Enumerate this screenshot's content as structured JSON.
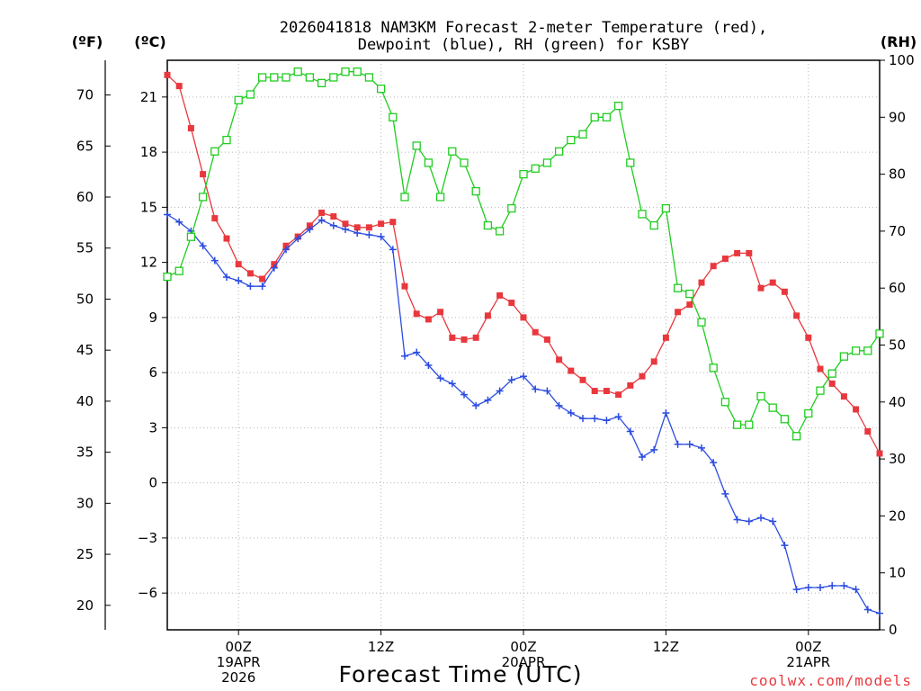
{
  "chart_data": {
    "type": "line",
    "title": [
      "2026041818 NAM3KM Forecast 2-meter Temperature (red),",
      "Dewpoint (blue), RH (green) for KSBY"
    ],
    "units": {
      "left_f": "(ºF)",
      "left_c": "(ºC)",
      "right": "(RH)"
    },
    "xlabel": "Forecast Time (UTC)",
    "credit": "coolwx.com/models",
    "x_axis": {
      "range_hours": [
        18,
        78
      ],
      "ticks": [
        {
          "hour": 24,
          "lines": [
            "00Z",
            "19APR",
            "2026"
          ]
        },
        {
          "hour": 36,
          "lines": [
            "12Z"
          ]
        },
        {
          "hour": 48,
          "lines": [
            "00Z",
            "20APR"
          ]
        },
        {
          "hour": 60,
          "lines": [
            "12Z"
          ]
        },
        {
          "hour": 72,
          "lines": [
            "00Z",
            "21APR"
          ]
        }
      ]
    },
    "y_celsius": {
      "range": [
        -8,
        23
      ],
      "ticks": [
        "21",
        "18",
        "15",
        "12",
        "9",
        "6",
        "3",
        "0",
        "−3",
        "−6"
      ]
    },
    "y_fahrenheit": {
      "ticks": [
        "70",
        "65",
        "60",
        "55",
        "50",
        "45",
        "40",
        "35",
        "30",
        "25",
        "20"
      ]
    },
    "y_rh": {
      "range": [
        0,
        100
      ],
      "ticks": [
        "100",
        "90",
        "80",
        "70",
        "60",
        "50",
        "40",
        "30",
        "20",
        "10",
        "0"
      ]
    },
    "series": [
      {
        "name": "Temperature",
        "unit": "C",
        "color": "#e8383d",
        "marker": "filled-square",
        "values": [
          22.2,
          21.6,
          19.3,
          16.8,
          14.4,
          13.3,
          11.9,
          11.4,
          11.1,
          11.9,
          12.9,
          13.4,
          14.0,
          14.7,
          14.5,
          14.1,
          13.9,
          13.9,
          14.1,
          14.2,
          10.7,
          9.2,
          8.9,
          9.3,
          7.9,
          7.8,
          7.9,
          9.1,
          10.2,
          9.8,
          9.0,
          8.2,
          7.8,
          6.7,
          6.1,
          5.6,
          5.0,
          5.0,
          4.8,
          5.3,
          5.8,
          6.6,
          7.9,
          9.3,
          9.7,
          10.9,
          11.8,
          12.2,
          12.5,
          12.5,
          10.6,
          10.9,
          10.4,
          9.1,
          7.9,
          6.2,
          5.4,
          4.7,
          4.0,
          2.8,
          1.6
        ]
      },
      {
        "name": "Dewpoint",
        "unit": "C",
        "color": "#2b4ce0",
        "marker": "plus",
        "values": [
          14.6,
          14.2,
          13.7,
          12.9,
          12.1,
          11.2,
          11.0,
          10.7,
          10.7,
          11.7,
          12.7,
          13.3,
          13.8,
          14.3,
          14.0,
          13.8,
          13.6,
          13.5,
          13.4,
          12.7,
          6.9,
          7.1,
          6.4,
          5.7,
          5.4,
          4.8,
          4.2,
          4.5,
          5.0,
          5.6,
          5.8,
          5.1,
          5.0,
          4.2,
          3.8,
          3.5,
          3.5,
          3.4,
          3.6,
          2.8,
          1.4,
          1.8,
          3.8,
          2.1,
          2.1,
          1.9,
          1.1,
          -0.6,
          -2.0,
          -2.1,
          -1.9,
          -2.1,
          -3.4,
          -5.8,
          -5.7,
          -5.7,
          -5.6,
          -5.6,
          -5.8,
          -6.9,
          -7.1
        ]
      },
      {
        "name": "RH",
        "unit": "%",
        "color": "#1fcd1f",
        "marker": "open-square",
        "values": [
          62,
          63,
          69,
          76,
          84,
          86,
          93,
          94,
          97,
          97,
          97,
          98,
          97,
          96,
          97,
          98,
          98,
          97,
          95,
          90,
          76,
          85,
          82,
          76,
          84,
          82,
          77,
          71,
          70,
          74,
          80,
          81,
          82,
          84,
          86,
          87,
          90,
          90,
          92,
          82,
          73,
          71,
          74,
          60,
          59,
          54,
          46,
          40,
          36,
          36,
          41,
          39,
          37,
          34,
          38,
          42,
          45,
          48,
          49,
          49,
          52
        ]
      }
    ]
  }
}
